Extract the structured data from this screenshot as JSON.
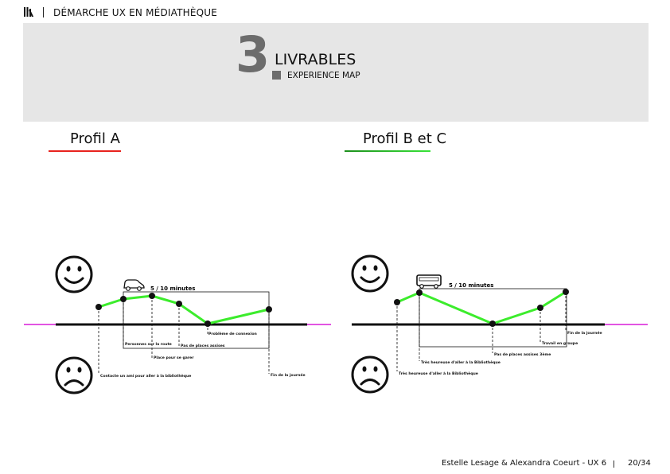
{
  "header": {
    "logo_icon": "books-icon",
    "title": "DÉMARCHE UX EN MÉDIATHÈQUE"
  },
  "banner": {
    "number": "3",
    "title": "LIVRABLES",
    "subtitle": "EXPERIENCE MAP"
  },
  "profiles": [
    {
      "label": "Profil A",
      "underline_color": "#e8231e",
      "vehicle_icon": "car-icon",
      "duration": "5 / 10 minutes",
      "steps": [
        "Contacte un ami pour aller à la bibliothèque",
        "Personnes sur la route",
        "Place pour se garer",
        "Pas de places assises",
        "Problème de connexion",
        "Fin de la journée"
      ]
    },
    {
      "label": "Profil B et C",
      "underline_color": "#39e339",
      "vehicle_icon": "bus-icon",
      "duration": "5 / 10 minutes",
      "steps": [
        "Très heureuse d'aller à la Bibliothèque",
        "Très heureuse d'aller à la Bibliothèque",
        "Pas de places assises 3ème",
        "Travail en groupe",
        "Fin de la journée"
      ]
    }
  ],
  "emotion_icons": {
    "positive": "happy-face-icon",
    "negative": "sad-face-icon"
  },
  "colors": {
    "curve": "#3cec2c",
    "timeline": "#111111",
    "timeline_ends": "#d81bd8",
    "banner_bg": "#e6e6e6",
    "number": "#6c6c6c"
  },
  "footer": {
    "credit": "Estelle Lesage & Alexandra Coeurt - UX 6",
    "page": "20/34"
  }
}
